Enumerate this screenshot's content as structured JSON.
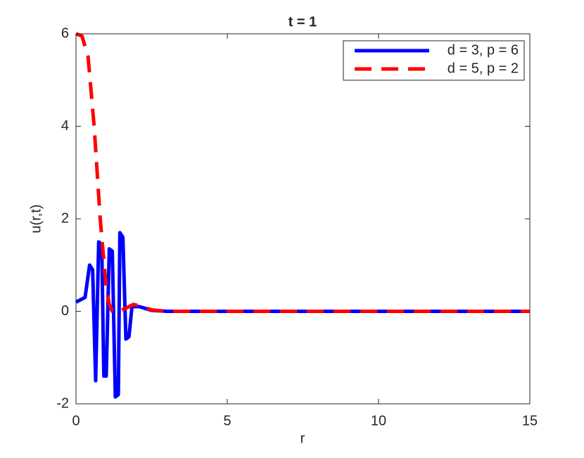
{
  "chart_data": {
    "type": "line",
    "title": "t = 1",
    "xlabel": "r",
    "ylabel": "u(r,t)",
    "xlim": [
      0,
      15
    ],
    "ylim": [
      -2,
      6
    ],
    "xticks": [
      0,
      5,
      10,
      15
    ],
    "yticks": [
      -2,
      0,
      2,
      4,
      6
    ],
    "grid": false,
    "legend": "northeast",
    "series": [
      {
        "name": "d = 3, p = 6",
        "color": "#0000ff",
        "style": "solid",
        "x": [
          0,
          0.3,
          0.45,
          0.55,
          0.65,
          0.75,
          0.85,
          0.92,
          1.0,
          1.1,
          1.2,
          1.3,
          1.4,
          1.45,
          1.55,
          1.65,
          1.75,
          1.85,
          2.1,
          2.5,
          3,
          15
        ],
        "values": [
          0.2,
          0.3,
          1.0,
          0.9,
          -1.5,
          1.5,
          1.45,
          -1.4,
          -1.4,
          1.35,
          1.3,
          -1.85,
          -1.8,
          1.7,
          1.6,
          -0.6,
          -0.55,
          0.1,
          0.1,
          0.02,
          0,
          0
        ]
      },
      {
        "name": "d = 5, p = 2",
        "color": "#ff0000",
        "style": "dashed",
        "x": [
          0,
          0.2,
          0.4,
          0.6,
          0.8,
          1.0,
          1.1,
          1.2,
          1.4,
          1.6,
          1.9,
          2.2,
          2.5,
          3,
          15
        ],
        "values": [
          6.0,
          5.95,
          5.5,
          4.0,
          2.0,
          0.5,
          0.15,
          0,
          0,
          0.05,
          0.15,
          0.1,
          0.03,
          0,
          0
        ]
      }
    ]
  }
}
